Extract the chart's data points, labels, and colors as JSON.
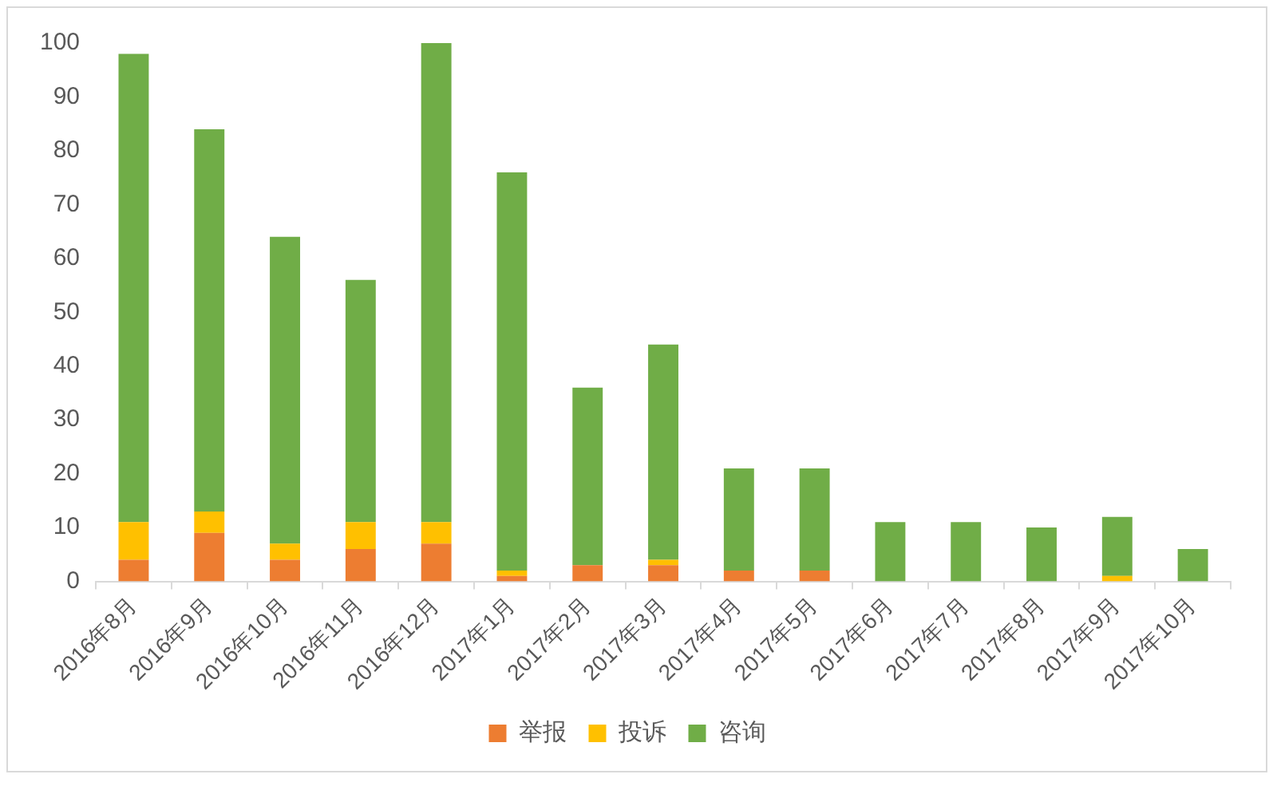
{
  "chart_data": {
    "type": "bar",
    "stacked": true,
    "categories": [
      "2016年8月",
      "2016年9月",
      "2016年10月",
      "2016年11月",
      "2016年12月",
      "2017年1月",
      "2017年2月",
      "2017年3月",
      "2017年4月",
      "2017年5月",
      "2017年6月",
      "2017年7月",
      "2017年8月",
      "2017年9月",
      "2017年10月"
    ],
    "series": [
      {
        "name": "举报",
        "color": "#ed7d31",
        "values": [
          4,
          9,
          4,
          6,
          7,
          1,
          3,
          3,
          2,
          2,
          0,
          0,
          0,
          0,
          0
        ]
      },
      {
        "name": "投诉",
        "color": "#ffc000",
        "values": [
          7,
          4,
          3,
          5,
          4,
          1,
          0,
          1,
          0,
          0,
          0,
          0,
          0,
          1,
          0
        ]
      },
      {
        "name": "咨询",
        "color": "#70ad47",
        "values": [
          87,
          71,
          57,
          45,
          89,
          74,
          33,
          40,
          19,
          19,
          11,
          11,
          10,
          11,
          6
        ]
      }
    ],
    "ylim": [
      0,
      100
    ],
    "yticks": [
      0,
      10,
      20,
      30,
      40,
      50,
      60,
      70,
      80,
      90,
      100
    ],
    "grid": false,
    "legend": "bottom"
  }
}
